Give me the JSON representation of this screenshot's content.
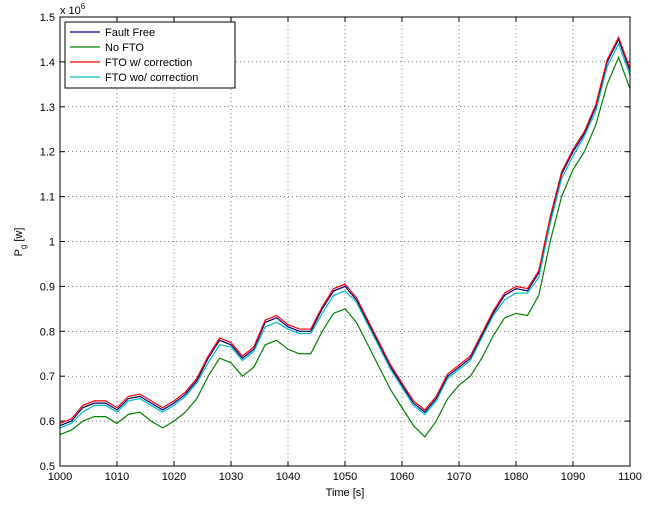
{
  "chart_data": {
    "type": "line",
    "xlabel": "Time [s]",
    "ylabel_main": "P",
    "ylabel_sub": "g",
    "ylabel_unit": "[w]",
    "multiplier_base": "x 10",
    "multiplier_exponent": "6",
    "xlim": [
      1000,
      1100
    ],
    "ylim": [
      0.5,
      1.5
    ],
    "xticks": [
      1000,
      1010,
      1020,
      1030,
      1040,
      1050,
      1060,
      1070,
      1080,
      1090,
      1100
    ],
    "yticks": [
      0.5,
      0.6,
      0.7,
      0.8,
      0.9,
      1,
      1.1,
      1.2,
      1.3,
      1.4,
      1.5
    ],
    "grid": true,
    "legend": "top-left",
    "x": [
      1000,
      1002,
      1004,
      1006,
      1008,
      1010,
      1012,
      1014,
      1016,
      1018,
      1020,
      1022,
      1024,
      1026,
      1028,
      1030,
      1032,
      1034,
      1036,
      1038,
      1040,
      1042,
      1044,
      1046,
      1048,
      1050,
      1052,
      1054,
      1056,
      1058,
      1060,
      1062,
      1064,
      1066,
      1068,
      1070,
      1072,
      1074,
      1076,
      1078,
      1080,
      1082,
      1084,
      1086,
      1088,
      1090,
      1092,
      1094,
      1096,
      1098,
      1100
    ],
    "series": [
      {
        "name": "Fault Free",
        "color": "#00007f",
        "values": [
          0.59,
          0.6,
          0.63,
          0.64,
          0.64,
          0.625,
          0.65,
          0.655,
          0.64,
          0.625,
          0.64,
          0.66,
          0.69,
          0.74,
          0.78,
          0.77,
          0.74,
          0.76,
          0.82,
          0.83,
          0.81,
          0.8,
          0.8,
          0.85,
          0.89,
          0.9,
          0.87,
          0.82,
          0.77,
          0.72,
          0.68,
          0.64,
          0.62,
          0.65,
          0.7,
          0.72,
          0.74,
          0.79,
          0.84,
          0.88,
          0.895,
          0.89,
          0.93,
          1.05,
          1.15,
          1.2,
          1.24,
          1.3,
          1.4,
          1.45,
          1.38
        ]
      },
      {
        "name": "No FTO",
        "color": "#008000",
        "values": [
          0.57,
          0.58,
          0.6,
          0.61,
          0.61,
          0.595,
          0.615,
          0.62,
          0.6,
          0.585,
          0.6,
          0.62,
          0.65,
          0.7,
          0.74,
          0.73,
          0.7,
          0.72,
          0.77,
          0.78,
          0.76,
          0.75,
          0.75,
          0.8,
          0.84,
          0.85,
          0.82,
          0.77,
          0.72,
          0.67,
          0.63,
          0.59,
          0.565,
          0.6,
          0.65,
          0.68,
          0.7,
          0.74,
          0.79,
          0.83,
          0.84,
          0.835,
          0.88,
          1.0,
          1.1,
          1.16,
          1.2,
          1.26,
          1.35,
          1.41,
          1.34
        ]
      },
      {
        "name": "FTO w/ correction",
        "color": "#ff0000",
        "values": [
          0.595,
          0.605,
          0.635,
          0.645,
          0.645,
          0.63,
          0.655,
          0.66,
          0.645,
          0.63,
          0.645,
          0.665,
          0.695,
          0.745,
          0.785,
          0.775,
          0.745,
          0.765,
          0.825,
          0.835,
          0.815,
          0.805,
          0.805,
          0.855,
          0.895,
          0.905,
          0.875,
          0.825,
          0.775,
          0.725,
          0.685,
          0.645,
          0.625,
          0.655,
          0.705,
          0.725,
          0.745,
          0.795,
          0.845,
          0.885,
          0.9,
          0.895,
          0.935,
          1.055,
          1.155,
          1.205,
          1.245,
          1.305,
          1.405,
          1.455,
          1.385
        ]
      },
      {
        "name": "FTO wo/ correction",
        "color": "#00bfbf",
        "values": [
          0.585,
          0.595,
          0.62,
          0.635,
          0.635,
          0.62,
          0.645,
          0.65,
          0.635,
          0.62,
          0.635,
          0.655,
          0.685,
          0.73,
          0.77,
          0.765,
          0.735,
          0.755,
          0.81,
          0.82,
          0.805,
          0.795,
          0.795,
          0.84,
          0.88,
          0.89,
          0.865,
          0.815,
          0.765,
          0.715,
          0.675,
          0.635,
          0.615,
          0.645,
          0.695,
          0.715,
          0.735,
          0.785,
          0.835,
          0.87,
          0.885,
          0.885,
          0.92,
          1.04,
          1.14,
          1.19,
          1.235,
          1.29,
          1.39,
          1.44,
          1.37
        ]
      }
    ]
  }
}
